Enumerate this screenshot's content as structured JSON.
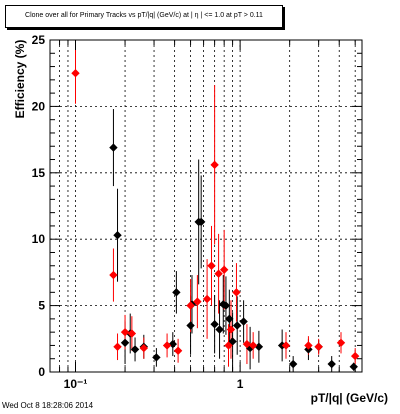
{
  "footer": {
    "timestamp": "Wed Oct  8 18:28:06 2014"
  },
  "chart_data": {
    "type": "scatter",
    "title": "Clone  over all for Primary Tracks vs pT/|q| (GeV/c) at |  η | <= 1.0 at pT > 0.11",
    "xlabel": "pT/|q| (GeV/c)",
    "ylabel": "Efficiency (%)",
    "x_scale": "log",
    "xlim": [
      0.07,
      5.5
    ],
    "ylim": [
      0,
      25
    ],
    "grid": true,
    "x_ticks": [
      {
        "value": 0.1,
        "label": "10⁻¹"
      },
      {
        "value": 1,
        "label": "1"
      }
    ],
    "y_ticks": [
      0,
      5,
      10,
      15,
      20,
      25
    ],
    "series": [
      {
        "color": "#000000",
        "marker": "diamond",
        "points": [
          {
            "x": 0.17,
            "y": 16.9,
            "err": 2.9
          },
          {
            "x": 0.18,
            "y": 10.3,
            "err": 3.5
          },
          {
            "x": 0.2,
            "y": 2.2,
            "err": 1.6
          },
          {
            "x": 0.215,
            "y": 2.9,
            "err": 1.5
          },
          {
            "x": 0.23,
            "y": 1.7,
            "err": 0.9
          },
          {
            "x": 0.26,
            "y": 1.9,
            "err": 0.9
          },
          {
            "x": 0.31,
            "y": 1.1,
            "err": 0.7
          },
          {
            "x": 0.39,
            "y": 2.1,
            "err": 0.9
          },
          {
            "x": 0.41,
            "y": 6.0,
            "err": 1.6
          },
          {
            "x": 0.5,
            "y": 3.5,
            "err": 2.2
          },
          {
            "x": 0.51,
            "y": 5.1,
            "err": 2.2
          },
          {
            "x": 0.56,
            "y": 11.3,
            "err": 4.7
          },
          {
            "x": 0.58,
            "y": 11.3,
            "err": 3.5
          },
          {
            "x": 0.7,
            "y": 3.6,
            "err": 2.2
          },
          {
            "x": 0.75,
            "y": 3.2,
            "err": 2.2
          },
          {
            "x": 0.79,
            "y": 5.1,
            "err": 2.2
          },
          {
            "x": 0.82,
            "y": 5.0,
            "err": 2.2
          },
          {
            "x": 0.86,
            "y": 4.0,
            "err": 2.2
          },
          {
            "x": 0.9,
            "y": 2.3,
            "err": 2.2
          },
          {
            "x": 0.96,
            "y": 3.5,
            "err": 2.2
          },
          {
            "x": 1.05,
            "y": 3.8,
            "err": 1.6
          },
          {
            "x": 1.15,
            "y": 1.8,
            "err": 1.6
          },
          {
            "x": 1.3,
            "y": 1.9,
            "err": 1.2
          },
          {
            "x": 1.8,
            "y": 2.0,
            "err": 1.2
          },
          {
            "x": 2.1,
            "y": 0.6,
            "err": 0.6
          },
          {
            "x": 2.6,
            "y": 1.7,
            "err": 0.8
          },
          {
            "x": 3.0,
            "y": 1.9,
            "err": 0.5
          },
          {
            "x": 3.6,
            "y": 0.6,
            "err": 0.6
          },
          {
            "x": 4.9,
            "y": 0.4,
            "err": 0.3
          }
        ]
      },
      {
        "color": "#ff0000",
        "marker": "diamond",
        "points": [
          {
            "x": 0.1,
            "y": 22.5,
            "err": 2.3
          },
          {
            "x": 0.17,
            "y": 7.3,
            "err": 2.0
          },
          {
            "x": 0.18,
            "y": 1.9,
            "err": 1.0
          },
          {
            "x": 0.2,
            "y": 3.0,
            "err": 1.3
          },
          {
            "x": 0.22,
            "y": 2.9,
            "err": 1.3
          },
          {
            "x": 0.26,
            "y": 1.8,
            "err": 0.8
          },
          {
            "x": 0.36,
            "y": 2.0,
            "err": 0.9
          },
          {
            "x": 0.42,
            "y": 1.6,
            "err": 0.9
          },
          {
            "x": 0.5,
            "y": 5.0,
            "err": 2.0
          },
          {
            "x": 0.55,
            "y": 5.3,
            "err": 2.0
          },
          {
            "x": 0.63,
            "y": 5.5,
            "err": 3.0
          },
          {
            "x": 0.67,
            "y": 8.0,
            "err": 3.0
          },
          {
            "x": 0.7,
            "y": 15.6,
            "err": 6.0
          },
          {
            "x": 0.74,
            "y": 7.4,
            "err": 3.0
          },
          {
            "x": 0.8,
            "y": 7.7,
            "err": 3.0
          },
          {
            "x": 0.85,
            "y": 2.0,
            "err": 1.6
          },
          {
            "x": 0.88,
            "y": 3.2,
            "err": 2.2
          },
          {
            "x": 0.95,
            "y": 6.0,
            "err": 2.2
          },
          {
            "x": 1.1,
            "y": 2.1,
            "err": 1.5
          },
          {
            "x": 1.2,
            "y": 2.0,
            "err": 1.0
          },
          {
            "x": 1.9,
            "y": 2.0,
            "err": 1.0
          },
          {
            "x": 2.6,
            "y": 2.0,
            "err": 0.7
          },
          {
            "x": 3.0,
            "y": 1.9,
            "err": 0.6
          },
          {
            "x": 4.1,
            "y": 2.2,
            "err": 0.8
          },
          {
            "x": 5.0,
            "y": 1.2,
            "err": 0.6
          }
        ]
      }
    ]
  }
}
